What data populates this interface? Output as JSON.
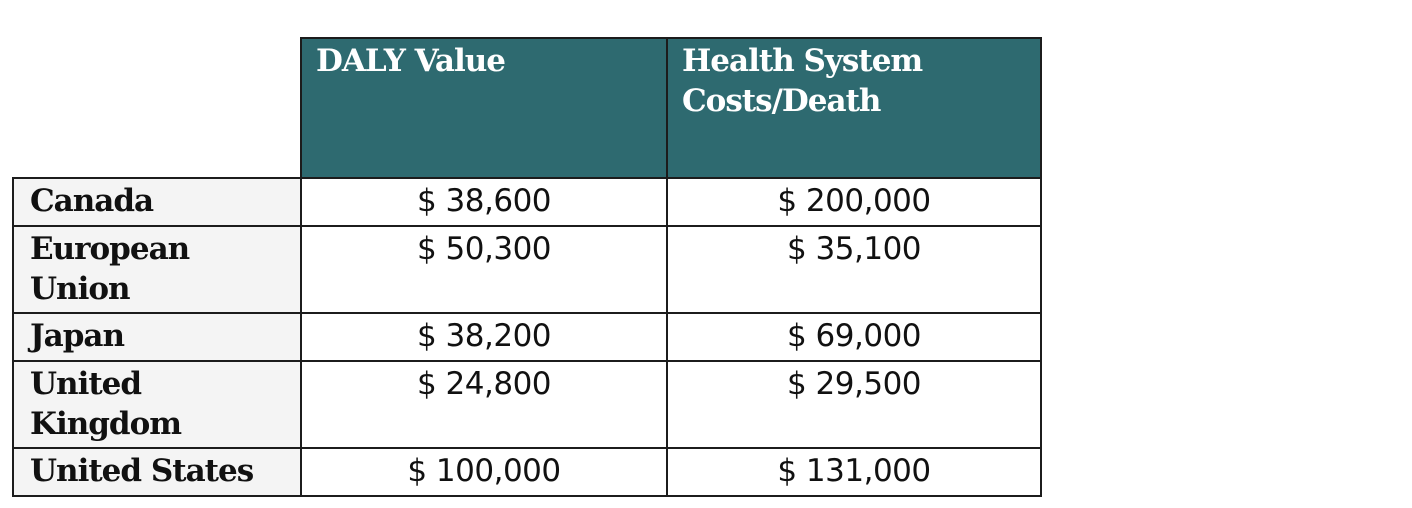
{
  "table": {
    "headers": [
      "DALY Value",
      "Health System Costs/Death"
    ],
    "rows": [
      {
        "country": "Canada",
        "daly": "$ 38,600",
        "cost": "$ 200,000"
      },
      {
        "country": "European Union",
        "daly": "$ 50,300",
        "cost": "$ 35,100"
      },
      {
        "country": "Japan",
        "daly": "$ 38,200",
        "cost": "$ 69,000"
      },
      {
        "country": "United Kingdom",
        "daly": "$ 24,800",
        "cost": "$ 29,500"
      },
      {
        "country": "United States",
        "daly": "$ 100,000",
        "cost": "$ 131,000"
      }
    ],
    "colors": {
      "header_bg": "#2e6a70",
      "header_text": "#ffffff",
      "first_col_bg": "#f4f4f4",
      "border": "#1c1c1c"
    }
  }
}
